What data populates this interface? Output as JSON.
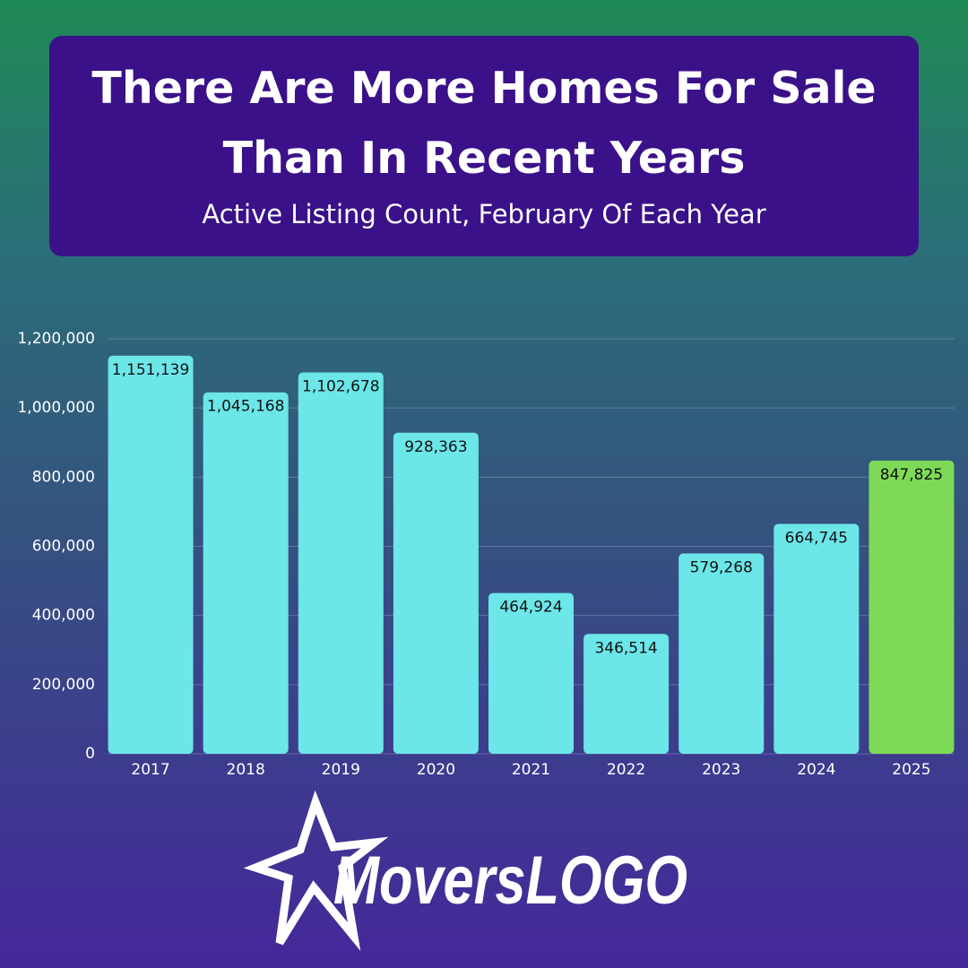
{
  "chart_data": {
    "type": "bar",
    "title": "There Are More Homes For Sale Than In Recent Years",
    "subtitle": "Active Listing Count, February Of Each Year",
    "categories": [
      "2017",
      "2018",
      "2019",
      "2020",
      "2021",
      "2022",
      "2023",
      "2024",
      "2025"
    ],
    "values": [
      1151139,
      1045168,
      1102678,
      928363,
      464924,
      346514,
      579268,
      664745,
      847825
    ],
    "value_labels": [
      "1,151,139",
      "1,045,168",
      "1,102,678",
      "928,363",
      "464,924",
      "346,514",
      "579,268",
      "664,745",
      "847,825"
    ],
    "colors": [
      "#6ce6e8",
      "#6ce6e8",
      "#6ce6e8",
      "#6ce6e8",
      "#6ce6e8",
      "#6ce6e8",
      "#6ce6e8",
      "#6ce6e8",
      "#7ed957"
    ],
    "ylim": [
      0,
      1200000
    ],
    "yticks": [
      0,
      {
        "value": 200000,
        "label": "200,000"
      },
      {
        "value": 400000,
        "label": "400,000"
      },
      {
        "value": 600000,
        "label": "600,000"
      },
      {
        "value": 800000,
        "label": "800,000"
      },
      {
        "value": 1000000,
        "label": "1,000,000"
      },
      {
        "value": 1200000,
        "label": "1,200,000"
      }
    ],
    "grid": true,
    "logo": "MoversLOGO"
  }
}
